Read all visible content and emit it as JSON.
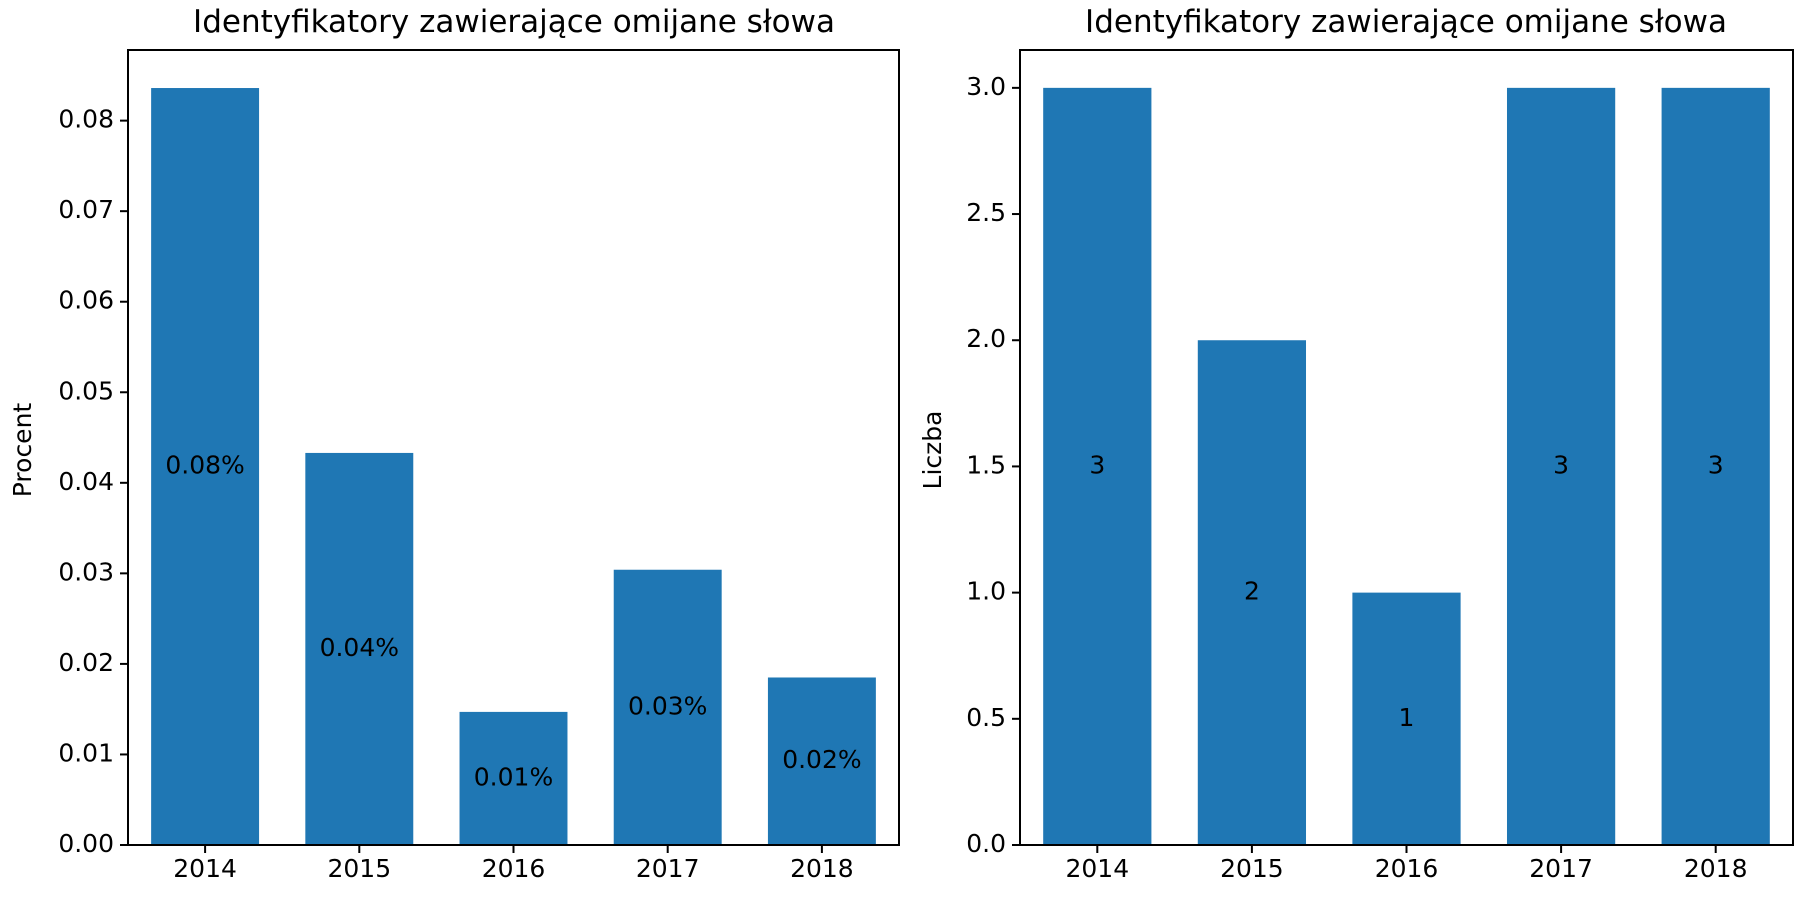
{
  "chart_data": [
    {
      "type": "bar",
      "title": "Identyfikatory zawierające omijane słowa",
      "xlabel": "",
      "ylabel": "Procent",
      "categories": [
        "2014",
        "2015",
        "2016",
        "2017",
        "2018"
      ],
      "values": [
        0.0836,
        0.0433,
        0.0147,
        0.0304,
        0.0185
      ],
      "value_labels": [
        "0.08%",
        "0.04%",
        "0.01%",
        "0.03%",
        "0.02%"
      ],
      "ylim": [
        0,
        0.0878
      ],
      "yticks": [
        "0.00",
        "0.01",
        "0.02",
        "0.03",
        "0.04",
        "0.05",
        "0.06",
        "0.07",
        "0.08"
      ],
      "grid": false,
      "bar_color": "#1f77b4"
    },
    {
      "type": "bar",
      "title": "Identyfikatory zawierające omijane słowa",
      "xlabel": "",
      "ylabel": "Liczba",
      "categories": [
        "2014",
        "2015",
        "2016",
        "2017",
        "2018"
      ],
      "values": [
        3,
        2,
        1,
        3,
        3
      ],
      "value_labels": [
        "3",
        "2",
        "1",
        "3",
        "3"
      ],
      "ylim": [
        0,
        3.15
      ],
      "yticks": [
        "0.0",
        "0.5",
        "1.0",
        "1.5",
        "2.0",
        "2.5",
        "3.0"
      ],
      "grid": false,
      "bar_color": "#1f77b4"
    }
  ]
}
